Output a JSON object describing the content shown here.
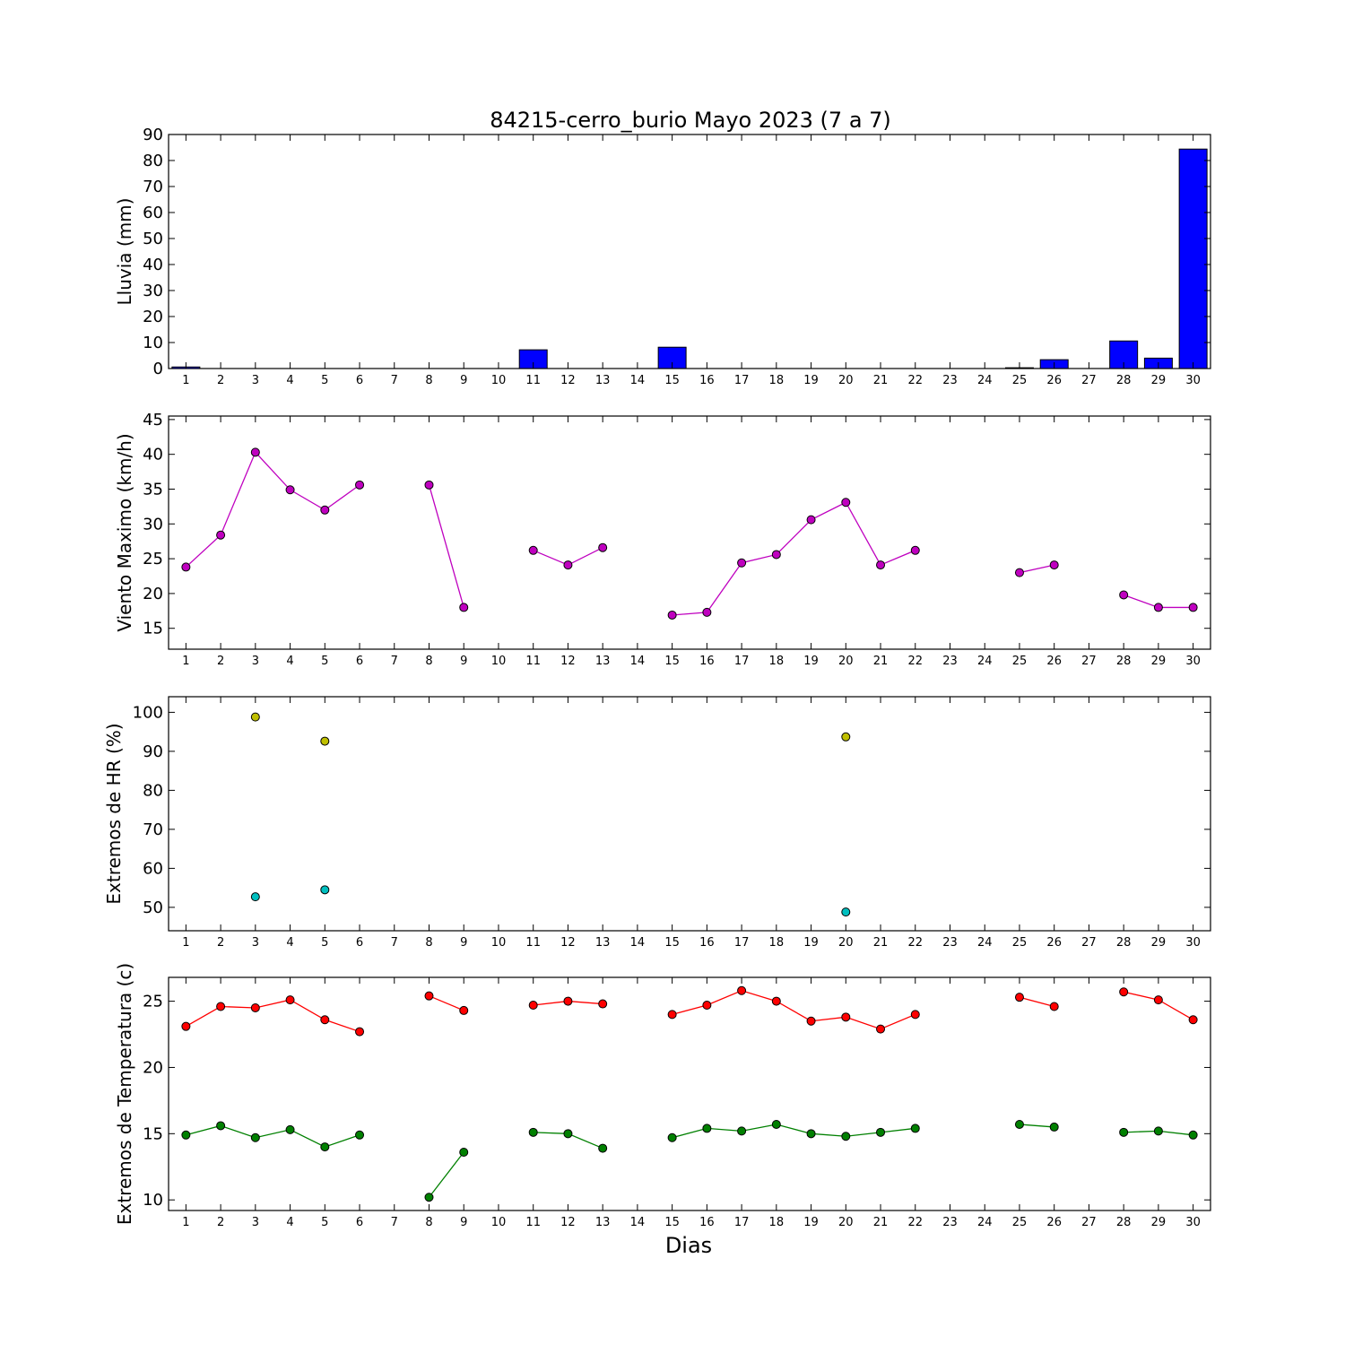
{
  "figure": {
    "title": "84215-cerro_burio Mayo 2023  (7 a 7)",
    "xlabel": "Dias"
  },
  "chart_data": [
    {
      "type": "bar",
      "ylabel": "Lluvia (mm)",
      "ylim": [
        0,
        90
      ],
      "yticks": [
        0,
        10,
        20,
        30,
        40,
        50,
        60,
        70,
        80,
        90
      ],
      "categories": [
        1,
        2,
        3,
        4,
        5,
        6,
        7,
        8,
        9,
        10,
        11,
        12,
        13,
        14,
        15,
        16,
        17,
        18,
        19,
        20,
        21,
        22,
        23,
        24,
        25,
        26,
        27,
        28,
        29,
        30
      ],
      "color": "#0000ff",
      "values": [
        0.6,
        0,
        0,
        0,
        0,
        0,
        0,
        0,
        0,
        0,
        7.2,
        0,
        0,
        0,
        8.2,
        0,
        0,
        0,
        0,
        0,
        0,
        0,
        0,
        0,
        0.3,
        3.4,
        0,
        10.6,
        4.0,
        84.4
      ]
    },
    {
      "type": "line",
      "ylabel": "Viento Maximo (km/h)",
      "ylim": [
        12,
        45.5
      ],
      "yticks": [
        15,
        20,
        25,
        30,
        35,
        40,
        45
      ],
      "x": [
        1,
        2,
        3,
        4,
        5,
        6,
        7,
        8,
        9,
        10,
        11,
        12,
        13,
        14,
        15,
        16,
        17,
        18,
        19,
        20,
        21,
        22,
        23,
        24,
        25,
        26,
        27,
        28,
        29,
        30
      ],
      "series": [
        {
          "color": "#bf00bf",
          "values": [
            23.8,
            28.4,
            40.3,
            34.9,
            32.0,
            35.6,
            null,
            35.6,
            18.0,
            null,
            26.2,
            24.1,
            26.6,
            null,
            16.9,
            17.3,
            24.4,
            25.6,
            30.6,
            33.1,
            24.1,
            26.2,
            null,
            null,
            23.0,
            24.1,
            null,
            19.8,
            18.0,
            18.0
          ]
        }
      ]
    },
    {
      "type": "scatter",
      "ylabel": "Extremos de HR (%)",
      "ylim": [
        44,
        104
      ],
      "yticks": [
        50,
        60,
        70,
        80,
        90,
        100
      ],
      "x": [
        1,
        2,
        3,
        4,
        5,
        6,
        7,
        8,
        9,
        10,
        11,
        12,
        13,
        14,
        15,
        16,
        17,
        18,
        19,
        20,
        21,
        22,
        23,
        24,
        25,
        26,
        27,
        28,
        29,
        30
      ],
      "series": [
        {
          "color": "#bfbf00",
          "values": [
            null,
            null,
            98.8,
            null,
            92.6,
            null,
            null,
            null,
            null,
            null,
            null,
            null,
            null,
            null,
            null,
            null,
            null,
            null,
            null,
            93.7,
            null,
            null,
            null,
            null,
            null,
            null,
            null,
            null,
            null,
            null
          ]
        },
        {
          "color": "#00bfbf",
          "values": [
            null,
            null,
            52.7,
            null,
            54.5,
            null,
            null,
            null,
            null,
            null,
            null,
            null,
            null,
            null,
            null,
            null,
            null,
            null,
            null,
            48.8,
            null,
            null,
            null,
            null,
            null,
            null,
            null,
            null,
            null,
            null
          ]
        }
      ]
    },
    {
      "type": "line",
      "ylabel": "Extremos de Temperatura (c)",
      "ylim": [
        9.2,
        26.8
      ],
      "yticks": [
        10,
        15,
        20,
        25
      ],
      "x": [
        1,
        2,
        3,
        4,
        5,
        6,
        7,
        8,
        9,
        10,
        11,
        12,
        13,
        14,
        15,
        16,
        17,
        18,
        19,
        20,
        21,
        22,
        23,
        24,
        25,
        26,
        27,
        28,
        29,
        30
      ],
      "series": [
        {
          "color": "#ff0000",
          "values": [
            23.1,
            24.6,
            24.5,
            25.1,
            23.6,
            22.7,
            null,
            25.4,
            24.3,
            null,
            24.7,
            25.0,
            24.8,
            null,
            24.0,
            24.7,
            25.8,
            25.0,
            23.5,
            23.8,
            22.9,
            24.0,
            null,
            null,
            25.3,
            24.6,
            null,
            25.7,
            25.1,
            23.6
          ]
        },
        {
          "color": "#008000",
          "values": [
            14.9,
            15.6,
            14.7,
            15.3,
            14.0,
            14.9,
            null,
            10.2,
            13.6,
            null,
            15.1,
            15.0,
            13.9,
            null,
            14.7,
            15.4,
            15.2,
            15.7,
            15.0,
            14.8,
            15.1,
            15.4,
            null,
            null,
            15.7,
            15.5,
            null,
            15.1,
            15.2,
            14.9
          ]
        }
      ]
    }
  ]
}
